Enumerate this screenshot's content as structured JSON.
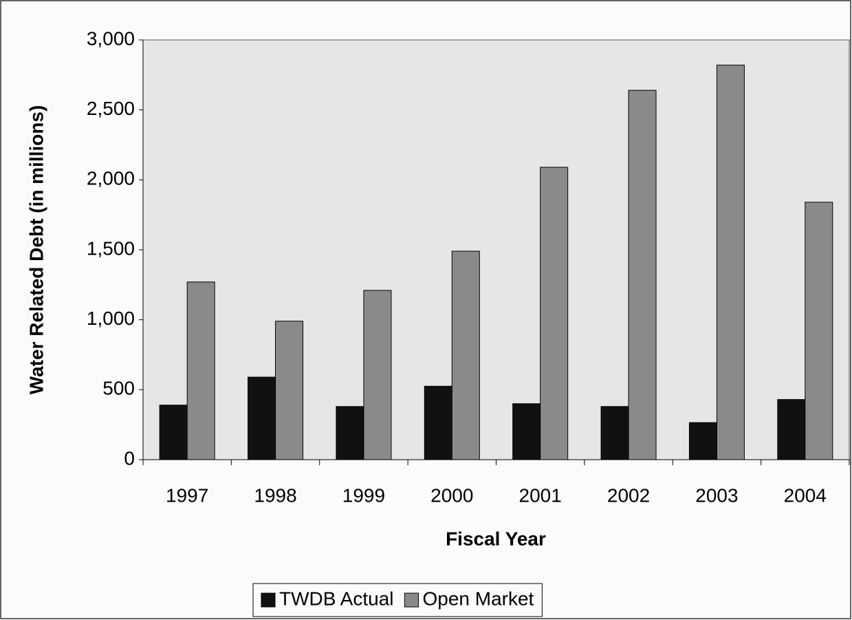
{
  "chart_data": {
    "type": "bar",
    "x_label": "Fiscal Year",
    "y_label": "Water Related Debt (in millions)",
    "categories": [
      "1997",
      "1998",
      "1999",
      "2000",
      "2001",
      "2002",
      "2003",
      "2004"
    ],
    "series": [
      {
        "name": "TWDB Actual",
        "color": "#111111",
        "values": [
          390,
          590,
          380,
          525,
          400,
          380,
          265,
          430
        ]
      },
      {
        "name": "Open Market",
        "color": "#8a8a8a",
        "values": [
          1270,
          990,
          1210,
          1490,
          2090,
          2640,
          2820,
          1840
        ]
      }
    ],
    "ylim": [
      0,
      3000
    ],
    "yticks": [
      0,
      500,
      {
        "value": 1000,
        "label": "1,000"
      },
      {
        "value": 1500,
        "label": "1,500"
      },
      {
        "value": 2000,
        "label": "2,000"
      },
      {
        "value": 2500,
        "label": "2,500"
      },
      {
        "value": 3000,
        "label": "3,000"
      }
    ],
    "grid": false,
    "legend": "bottom"
  }
}
